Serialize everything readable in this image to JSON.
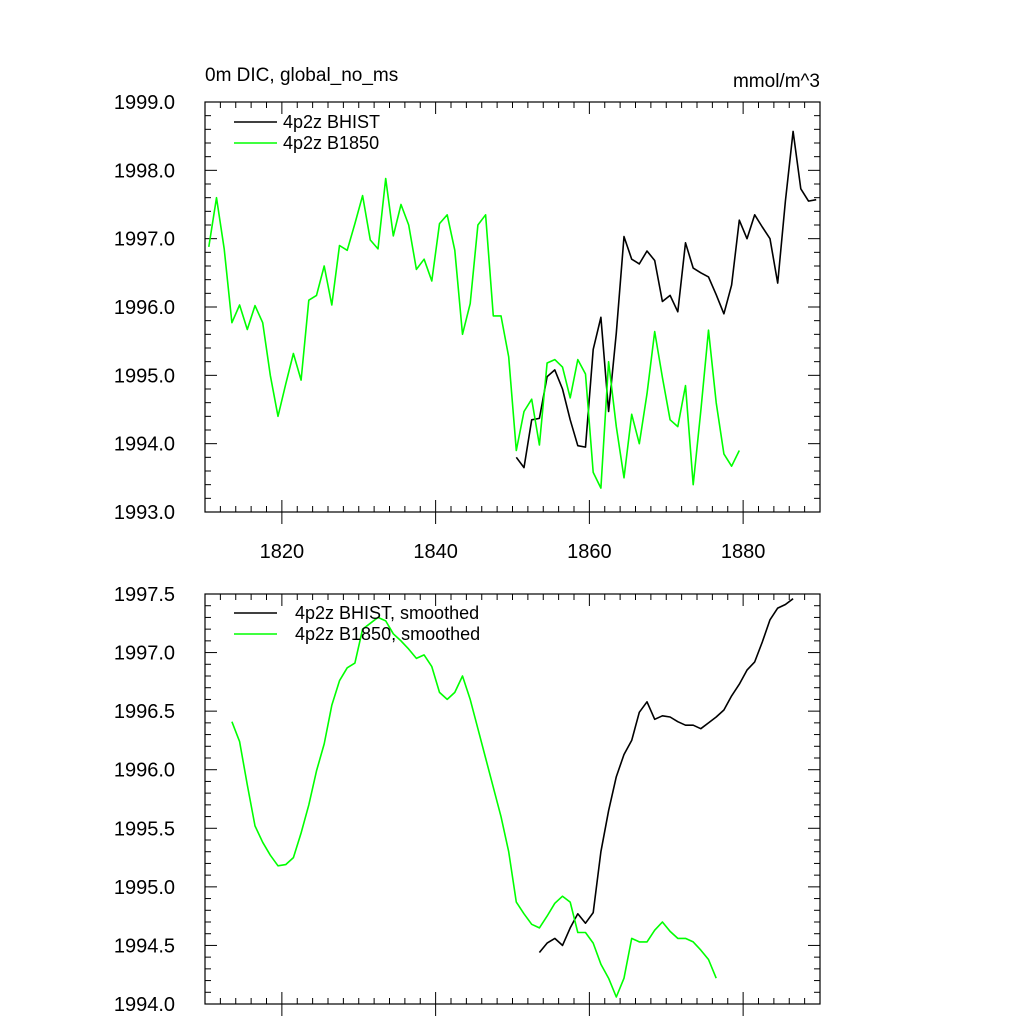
{
  "chart_data": [
    {
      "type": "line",
      "title": "0m DIC, global_no_ms",
      "units": "mmol/m^3",
      "xlim": [
        1810,
        1890
      ],
      "ylim": [
        1993.0,
        1999.0
      ],
      "yticks": [
        1993.0,
        1994.0,
        1995.0,
        1996.0,
        1997.0,
        1998.0,
        1999.0
      ],
      "ytick_labels": [
        "1993.0",
        "1994.0",
        "1995.0",
        "1996.0",
        "1997.0",
        "1998.0",
        "1999.0"
      ],
      "xticks": [
        1820,
        1840,
        1860,
        1880
      ],
      "xtick_labels": [
        "1820",
        "1840",
        "1860",
        "1880"
      ],
      "legend_position": "top-left",
      "series": [
        {
          "name": "4p2z BHIST",
          "color": "#000000",
          "x": [
            1850.5,
            1851.5,
            1852.5,
            1853.5,
            1854.5,
            1855.5,
            1856.5,
            1857.5,
            1858.5,
            1859.5,
            1860.5,
            1861.5,
            1862.5,
            1863.5,
            1864.5,
            1865.5,
            1866.5,
            1867.5,
            1868.5,
            1869.5,
            1870.5,
            1871.5,
            1872.5,
            1873.5,
            1874.5,
            1875.5,
            1876.5,
            1877.5,
            1878.5,
            1879.5,
            1880.5,
            1881.5,
            1882.5,
            1883.5,
            1884.5,
            1885.5,
            1886.5,
            1887.5,
            1888.5,
            1889.5
          ],
          "values": [
            1993.8,
            1993.65,
            1994.35,
            1994.37,
            1994.98,
            1995.08,
            1994.8,
            1994.35,
            1993.97,
            1993.95,
            1995.38,
            1995.85,
            1994.47,
            1995.62,
            1997.03,
            1996.7,
            1996.63,
            1996.82,
            1996.68,
            1996.08,
            1996.17,
            1995.93,
            1996.94,
            1996.57,
            1996.5,
            1996.44,
            1996.18,
            1995.9,
            1996.32,
            1997.27,
            1997.0,
            1997.35,
            1997.17,
            1997.0,
            1996.35,
            1997.55,
            1998.57,
            1997.73,
            1997.55,
            1997.57
          ]
        },
        {
          "name": "4p2z B1850",
          "color": "#00ff00",
          "x": [
            1810.5,
            1811.5,
            1812.5,
            1813.5,
            1814.5,
            1815.5,
            1816.5,
            1817.5,
            1818.5,
            1819.5,
            1820.5,
            1821.5,
            1822.5,
            1823.5,
            1824.5,
            1825.5,
            1826.5,
            1827.5,
            1828.5,
            1829.5,
            1830.5,
            1831.5,
            1832.5,
            1833.5,
            1834.5,
            1835.5,
            1836.5,
            1837.5,
            1838.5,
            1839.5,
            1840.5,
            1841.5,
            1842.5,
            1843.5,
            1844.5,
            1845.5,
            1846.5,
            1847.5,
            1848.5,
            1849.5,
            1850.5,
            1851.5,
            1852.5,
            1853.5,
            1854.5,
            1855.5,
            1856.5,
            1857.5,
            1858.5,
            1859.5,
            1860.5,
            1861.5,
            1862.5,
            1863.5,
            1864.5,
            1865.5,
            1866.5,
            1867.5,
            1868.5,
            1869.5,
            1870.5,
            1871.5,
            1872.5,
            1873.5,
            1874.5,
            1875.5,
            1876.5,
            1877.5,
            1878.5,
            1879.5
          ],
          "values": [
            1996.88,
            1997.6,
            1996.85,
            1995.77,
            1996.03,
            1995.67,
            1996.02,
            1995.77,
            1995.0,
            1994.4,
            1994.87,
            1995.32,
            1994.93,
            1996.1,
            1996.17,
            1996.6,
            1996.03,
            1996.9,
            1996.83,
            1997.22,
            1997.63,
            1996.98,
            1996.85,
            1997.88,
            1997.04,
            1997.5,
            1997.2,
            1996.55,
            1996.7,
            1996.38,
            1997.22,
            1997.35,
            1996.83,
            1995.6,
            1996.05,
            1997.2,
            1997.35,
            1995.87,
            1995.87,
            1995.27,
            1993.9,
            1994.47,
            1994.65,
            1993.98,
            1995.18,
            1995.23,
            1995.12,
            1994.67,
            1995.23,
            1995.02,
            1993.58,
            1993.35,
            1995.2,
            1994.25,
            1993.5,
            1994.43,
            1994.0,
            1994.73,
            1995.64,
            1994.97,
            1994.35,
            1994.25,
            1994.85,
            1993.4,
            1994.48,
            1995.66,
            1994.6,
            1993.85,
            1993.67,
            1993.9
          ]
        }
      ]
    },
    {
      "type": "line",
      "xlim": [
        1810,
        1890
      ],
      "ylim": [
        1994.0,
        1997.5
      ],
      "yticks": [
        1994.0,
        1994.5,
        1995.0,
        1995.5,
        1996.0,
        1996.5,
        1997.0,
        1997.5
      ],
      "ytick_labels": [
        "1994.0",
        "1994.5",
        "1995.0",
        "1995.5",
        "1996.0",
        "1996.5",
        "1997.0",
        "1997.5"
      ],
      "xticks": [
        1820,
        1840,
        1860,
        1880
      ],
      "legend_position": "top-left",
      "series": [
        {
          "name": "4p2z BHIST, smoothed",
          "color": "#000000",
          "x": [
            1853.5,
            1854.5,
            1855.5,
            1856.5,
            1857.5,
            1858.5,
            1859.5,
            1860.5,
            1861.5,
            1862.5,
            1863.5,
            1864.5,
            1865.5,
            1866.5,
            1867.5,
            1868.5,
            1869.5,
            1870.5,
            1871.5,
            1872.5,
            1873.5,
            1874.5,
            1875.5,
            1876.5,
            1877.5,
            1878.5,
            1879.5,
            1880.5,
            1881.5,
            1882.5,
            1883.5,
            1884.5,
            1885.5,
            1886.5
          ],
          "values": [
            1994.44,
            1994.52,
            1994.56,
            1994.5,
            1994.65,
            1994.77,
            1994.69,
            1994.78,
            1995.3,
            1995.65,
            1995.94,
            1996.13,
            1996.25,
            1996.49,
            1996.58,
            1996.43,
            1996.46,
            1996.45,
            1996.41,
            1996.38,
            1996.38,
            1996.35,
            1996.4,
            1996.45,
            1996.51,
            1996.63,
            1996.73,
            1996.85,
            1996.92,
            1997.09,
            1997.28,
            1997.38,
            1997.41,
            1997.46
          ]
        },
        {
          "name": "4p2z B1850, smoothed",
          "color": "#00ff00",
          "x": [
            1813.5,
            1814.5,
            1815.5,
            1816.5,
            1817.5,
            1818.5,
            1819.5,
            1820.5,
            1821.5,
            1822.5,
            1823.5,
            1824.5,
            1825.5,
            1826.5,
            1827.5,
            1828.5,
            1829.5,
            1830.5,
            1831.5,
            1832.5,
            1833.5,
            1834.5,
            1835.5,
            1836.5,
            1837.5,
            1838.5,
            1839.5,
            1840.5,
            1841.5,
            1842.5,
            1843.5,
            1844.5,
            1845.5,
            1846.5,
            1847.5,
            1848.5,
            1849.5,
            1850.5,
            1851.5,
            1852.5,
            1853.5,
            1854.5,
            1855.5,
            1856.5,
            1857.5,
            1858.5,
            1859.5,
            1860.5,
            1861.5,
            1862.5,
            1863.5,
            1864.5,
            1865.5,
            1866.5,
            1867.5,
            1868.5,
            1869.5,
            1870.5,
            1871.5,
            1872.5,
            1873.5,
            1874.5,
            1875.5,
            1876.5
          ],
          "values": [
            1996.41,
            1996.24,
            1995.87,
            1995.52,
            1995.38,
            1995.27,
            1995.18,
            1995.19,
            1995.25,
            1995.46,
            1995.7,
            1995.99,
            1996.22,
            1996.55,
            1996.76,
            1996.87,
            1996.91,
            1997.2,
            1997.25,
            1997.3,
            1997.27,
            1997.16,
            1997.1,
            1997.03,
            1996.95,
            1996.98,
            1996.88,
            1996.66,
            1996.6,
            1996.66,
            1996.8,
            1996.6,
            1996.35,
            1996.1,
            1995.85,
            1995.6,
            1995.3,
            1994.87,
            1994.77,
            1994.68,
            1994.65,
            1994.75,
            1994.86,
            1994.92,
            1994.87,
            1994.61,
            1994.61,
            1994.52,
            1994.34,
            1994.22,
            1994.06,
            1994.22,
            1994.56,
            1994.53,
            1994.53,
            1994.63,
            1994.7,
            1994.62,
            1994.56,
            1994.56,
            1994.53,
            1994.46,
            1994.38,
            1994.22
          ]
        }
      ]
    }
  ]
}
